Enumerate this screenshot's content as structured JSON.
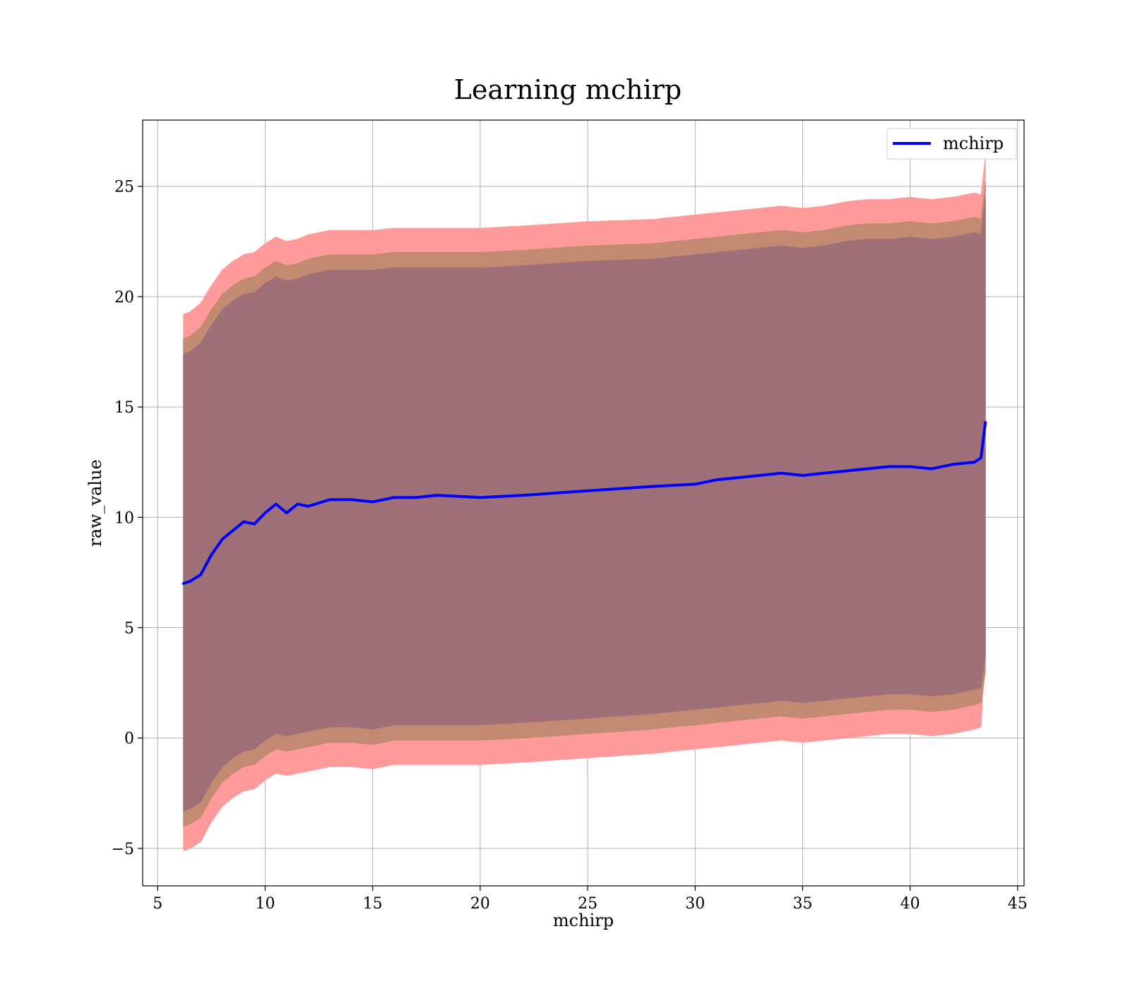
{
  "chart_data": {
    "type": "line",
    "title": "Learning mchirp",
    "xlabel": "mchirp",
    "ylabel": "raw_value",
    "xlim": [
      4.3,
      45.3
    ],
    "ylim": [
      -6.7,
      28.0
    ],
    "xticks": [
      5,
      10,
      15,
      20,
      25,
      30,
      35,
      40,
      45
    ],
    "yticks": [
      -5,
      0,
      5,
      10,
      15,
      20,
      25
    ],
    "xtick_labels": [
      "5",
      "10",
      "15",
      "20",
      "25",
      "30",
      "35",
      "40",
      "45"
    ],
    "ytick_labels": [
      "−5",
      "0",
      "5",
      "10",
      "15",
      "20",
      "25"
    ],
    "grid": true,
    "legend": {
      "placement": "top-right",
      "entries": [
        "mchirp"
      ]
    },
    "colors": {
      "line": "#0000ff",
      "band_outer": "#ff9a9a",
      "band_middle": "#c28a70",
      "band_inner": "#a07078"
    },
    "series": [
      {
        "name": "mchirp",
        "x": [
          6.2,
          6.5,
          7.0,
          7.5,
          8.0,
          8.5,
          9.0,
          9.5,
          10.0,
          10.5,
          11.0,
          11.5,
          12.0,
          13.0,
          14.0,
          15.0,
          16.0,
          17.0,
          18.0,
          20.0,
          22.0,
          25.0,
          28.0,
          30.0,
          31.0,
          32.0,
          33.0,
          34.0,
          35.0,
          36.0,
          37.0,
          38.0,
          39.0,
          40.0,
          41.0,
          42.0,
          43.0,
          43.3,
          43.5
        ],
        "y": [
          7.0,
          7.1,
          7.4,
          8.3,
          9.0,
          9.4,
          9.8,
          9.7,
          10.2,
          10.6,
          10.2,
          10.6,
          10.5,
          10.8,
          10.8,
          10.7,
          10.9,
          10.9,
          11.0,
          10.9,
          11.0,
          11.2,
          11.4,
          11.5,
          11.7,
          11.8,
          11.9,
          12.0,
          11.9,
          12.0,
          12.1,
          12.2,
          12.3,
          12.3,
          12.2,
          12.4,
          12.5,
          12.7,
          14.3
        ]
      }
    ],
    "bands": [
      {
        "level": "outer",
        "x": [
          6.2,
          6.5,
          7.0,
          7.5,
          8.0,
          8.5,
          9.0,
          9.5,
          10.0,
          10.5,
          11.0,
          11.5,
          12.0,
          13.0,
          14.0,
          15.0,
          16.0,
          17.0,
          18.0,
          20.0,
          22.0,
          25.0,
          28.0,
          30.0,
          31.0,
          32.0,
          33.0,
          34.0,
          35.0,
          36.0,
          37.0,
          38.0,
          39.0,
          40.0,
          41.0,
          42.0,
          43.0,
          43.3,
          43.5
        ],
        "upper": [
          19.2,
          19.3,
          19.7,
          20.5,
          21.2,
          21.6,
          21.9,
          22.0,
          22.4,
          22.7,
          22.5,
          22.6,
          22.8,
          23.0,
          23.0,
          23.0,
          23.1,
          23.1,
          23.1,
          23.1,
          23.2,
          23.4,
          23.5,
          23.7,
          23.8,
          23.9,
          24.0,
          24.1,
          24.0,
          24.1,
          24.3,
          24.4,
          24.4,
          24.5,
          24.4,
          24.5,
          24.7,
          24.6,
          26.3
        ],
        "lower": [
          -5.1,
          -5.0,
          -4.7,
          -3.8,
          -3.1,
          -2.7,
          -2.4,
          -2.3,
          -1.9,
          -1.6,
          -1.7,
          -1.6,
          -1.5,
          -1.3,
          -1.3,
          -1.4,
          -1.2,
          -1.2,
          -1.2,
          -1.2,
          -1.1,
          -0.9,
          -0.7,
          -0.5,
          -0.4,
          -0.3,
          -0.2,
          -0.1,
          -0.2,
          -0.1,
          0.0,
          0.1,
          0.2,
          0.2,
          0.1,
          0.2,
          0.4,
          0.5,
          3.9
        ]
      },
      {
        "level": "middle",
        "x": [
          6.2,
          6.5,
          7.0,
          7.5,
          8.0,
          8.5,
          9.0,
          9.5,
          10.0,
          10.5,
          11.0,
          11.5,
          12.0,
          13.0,
          14.0,
          15.0,
          16.0,
          17.0,
          18.0,
          20.0,
          22.0,
          25.0,
          28.0,
          30.0,
          31.0,
          32.0,
          33.0,
          34.0,
          35.0,
          36.0,
          37.0,
          38.0,
          39.0,
          40.0,
          41.0,
          42.0,
          43.0,
          43.3,
          43.5
        ],
        "upper": [
          18.1,
          18.2,
          18.6,
          19.4,
          20.1,
          20.5,
          20.8,
          20.9,
          21.3,
          21.6,
          21.4,
          21.5,
          21.7,
          21.9,
          21.9,
          21.9,
          22.0,
          22.0,
          22.0,
          22.0,
          22.1,
          22.3,
          22.4,
          22.6,
          22.7,
          22.8,
          22.9,
          23.0,
          22.9,
          23.0,
          23.2,
          23.3,
          23.3,
          23.4,
          23.3,
          23.4,
          23.6,
          23.5,
          25.2
        ],
        "lower": [
          -4.0,
          -3.9,
          -3.6,
          -2.7,
          -2.0,
          -1.6,
          -1.3,
          -1.2,
          -0.8,
          -0.5,
          -0.6,
          -0.5,
          -0.4,
          -0.2,
          -0.2,
          -0.3,
          -0.1,
          -0.1,
          -0.1,
          -0.1,
          0.0,
          0.2,
          0.4,
          0.6,
          0.7,
          0.8,
          0.9,
          1.0,
          0.9,
          1.0,
          1.1,
          1.2,
          1.3,
          1.3,
          1.2,
          1.3,
          1.5,
          1.6,
          3.0
        ]
      },
      {
        "level": "inner",
        "x": [
          6.2,
          6.5,
          7.0,
          7.5,
          8.0,
          8.5,
          9.0,
          9.5,
          10.0,
          10.5,
          11.0,
          11.5,
          12.0,
          13.0,
          14.0,
          15.0,
          16.0,
          17.0,
          18.0,
          20.0,
          22.0,
          25.0,
          28.0,
          30.0,
          31.0,
          32.0,
          33.0,
          34.0,
          35.0,
          36.0,
          37.0,
          38.0,
          39.0,
          40.0,
          41.0,
          42.0,
          43.0,
          43.3,
          43.5
        ],
        "upper": [
          17.4,
          17.5,
          17.9,
          18.7,
          19.4,
          19.8,
          20.1,
          20.2,
          20.6,
          20.9,
          20.7,
          20.8,
          21.0,
          21.2,
          21.2,
          21.2,
          21.3,
          21.3,
          21.3,
          21.3,
          21.4,
          21.6,
          21.7,
          21.9,
          22.0,
          22.1,
          22.2,
          22.3,
          22.2,
          22.3,
          22.5,
          22.6,
          22.6,
          22.7,
          22.6,
          22.7,
          22.9,
          22.8,
          24.5
        ],
        "lower": [
          -3.3,
          -3.2,
          -2.9,
          -2.0,
          -1.3,
          -0.9,
          -0.6,
          -0.5,
          -0.1,
          0.2,
          0.1,
          0.2,
          0.3,
          0.5,
          0.5,
          0.4,
          0.6,
          0.6,
          0.6,
          0.6,
          0.7,
          0.9,
          1.1,
          1.3,
          1.4,
          1.5,
          1.6,
          1.7,
          1.6,
          1.7,
          1.8,
          1.9,
          2.0,
          2.0,
          1.9,
          2.0,
          2.2,
          2.3,
          3.7
        ]
      }
    ]
  }
}
